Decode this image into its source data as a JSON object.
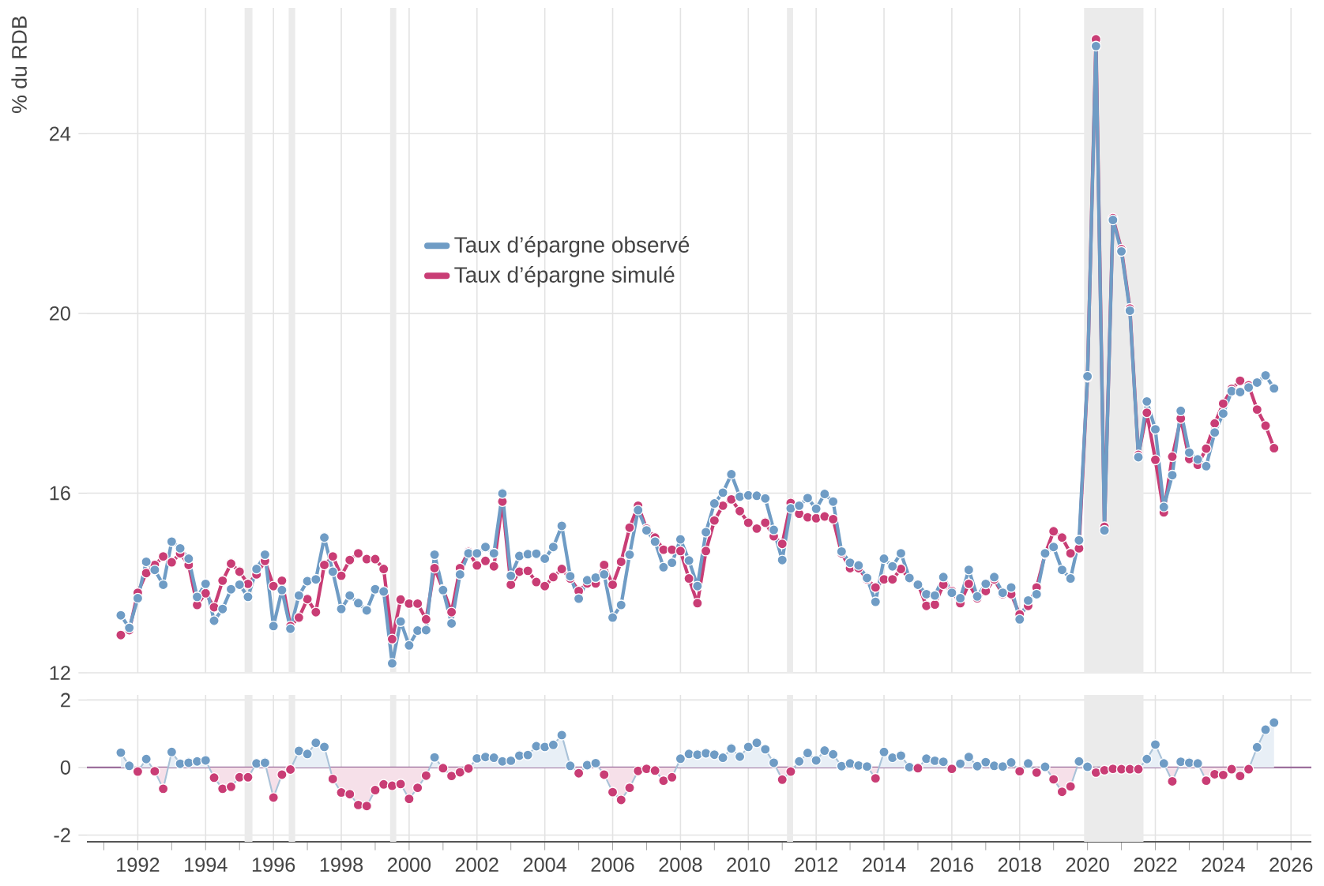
{
  "chart_data": [
    {
      "type": "line",
      "ylabel": "% du RDB",
      "x": [
        1991.5,
        1991.75,
        1992,
        1992.25,
        1992.5,
        1992.75,
        1993,
        1993.25,
        1993.5,
        1993.75,
        1994,
        1994.25,
        1994.5,
        1994.75,
        1995,
        1995.25,
        1995.5,
        1995.75,
        1996,
        1996.25,
        1996.5,
        1996.75,
        1997,
        1997.25,
        1997.5,
        1997.75,
        1998,
        1998.25,
        1998.5,
        1998.75,
        1999,
        1999.25,
        1999.5,
        1999.75,
        2000,
        2000.25,
        2000.5,
        2000.75,
        2001,
        2001.25,
        2001.5,
        2001.75,
        2002,
        2002.25,
        2002.5,
        2002.75,
        2003,
        2003.25,
        2003.5,
        2003.75,
        2004,
        2004.25,
        2004.5,
        2004.75,
        2005,
        2005.25,
        2005.5,
        2005.75,
        2006,
        2006.25,
        2006.5,
        2006.75,
        2007,
        2007.25,
        2007.5,
        2007.75,
        2008,
        2008.25,
        2008.5,
        2008.75,
        2009,
        2009.25,
        2009.5,
        2009.75,
        2010,
        2010.25,
        2010.5,
        2010.75,
        2011,
        2011.25,
        2011.5,
        2011.75,
        2012,
        2012.25,
        2012.5,
        2012.75,
        2013,
        2013.25,
        2013.5,
        2013.75,
        2014,
        2014.25,
        2014.5,
        2014.75,
        2015,
        2015.25,
        2015.5,
        2015.75,
        2016,
        2016.25,
        2016.5,
        2016.75,
        2017,
        2017.25,
        2017.5,
        2017.75,
        2018,
        2018.25,
        2018.5,
        2018.75,
        2019,
        2019.25,
        2019.5,
        2019.75,
        2020,
        2020.25,
        2020.5,
        2020.75,
        2021,
        2021.25,
        2021.5,
        2021.75,
        2022,
        2022.25,
        2022.5,
        2022.75,
        2023,
        2023.25,
        2023.5,
        2023.75,
        2024,
        2024.25,
        2024.5,
        2024.75,
        2025,
        2025.25,
        2025.5
      ],
      "xlim": [
        1990.5,
        2026.6
      ],
      "ylim": [
        12,
        26.8
      ],
      "xticks": [
        1992,
        1994,
        1996,
        1998,
        2000,
        2002,
        2004,
        2006,
        2008,
        2010,
        2012,
        2014,
        2016,
        2018,
        2020,
        2022,
        2024,
        2026
      ],
      "yticks": [
        12,
        16,
        20,
        24
      ],
      "tick_labels": "y",
      "grid": true,
      "legend": "top",
      "marker": "circle",
      "line_style": "solid",
      "bands": [
        {
          "axis": "x",
          "from": 1995.15,
          "to": 1995.38,
          "color": "#ebebeb"
        },
        {
          "axis": "x",
          "from": 1996.45,
          "to": 1996.64,
          "color": "#ebebeb"
        },
        {
          "axis": "x",
          "from": 1999.44,
          "to": 1999.62,
          "color": "#ebebeb"
        },
        {
          "axis": "x",
          "from": 2011.14,
          "to": 2011.32,
          "color": "#ebebeb"
        },
        {
          "axis": "x",
          "from": 2019.9,
          "to": 2021.65,
          "color": "#ebebeb"
        }
      ],
      "series": [
        {
          "name": "Taux d’épargne observé",
          "color": "#6f9cc5",
          "values": [
            13.28,
            13.0,
            13.66,
            14.47,
            14.29,
            13.96,
            14.92,
            14.77,
            14.54,
            13.69,
            13.98,
            13.16,
            13.42,
            13.86,
            13.96,
            13.69,
            14.31,
            14.63,
            13.04,
            13.84,
            12.98,
            13.72,
            14.04,
            14.08,
            15.01,
            14.25,
            13.42,
            13.72,
            13.55,
            13.39,
            13.86,
            13.81,
            12.21,
            13.14,
            12.61,
            12.94,
            12.95,
            14.63,
            13.84,
            13.1,
            14.19,
            14.66,
            14.66,
            14.8,
            14.66,
            15.99,
            14.16,
            14.6,
            14.64,
            14.65,
            14.54,
            14.8,
            15.27,
            14.15,
            13.65,
            14.06,
            14.12,
            14.19,
            13.23,
            13.51,
            14.63,
            15.62,
            15.17,
            14.92,
            14.35,
            14.45,
            14.97,
            14.5,
            13.93,
            15.13,
            15.77,
            16.01,
            16.42,
            15.92,
            15.95,
            15.94,
            15.88,
            15.18,
            14.51,
            15.66,
            15.72,
            15.89,
            15.65,
            15.98,
            15.81,
            14.7,
            14.45,
            14.39,
            14.11,
            13.58,
            14.54,
            14.37,
            14.66,
            14.11,
            13.96,
            13.75,
            13.72,
            14.13,
            13.78,
            13.66,
            14.29,
            13.7,
            13.98,
            14.13,
            13.78,
            13.9,
            13.19,
            13.61,
            13.75,
            14.66,
            14.8,
            14.29,
            14.1,
            14.95,
            18.6,
            25.95,
            15.17,
            22.08,
            21.38,
            20.06,
            16.8,
            18.04,
            17.42,
            15.69,
            16.4,
            17.83,
            16.9,
            16.75,
            16.6,
            17.35,
            17.77,
            18.27,
            18.25,
            18.35,
            18.46,
            18.62,
            18.33
          ]
        },
        {
          "name": "Taux d’épargne simulé",
          "color": "#c93d75",
          "values": [
            12.84,
            12.95,
            13.78,
            14.22,
            14.4,
            14.59,
            14.46,
            14.66,
            14.4,
            13.51,
            13.77,
            13.46,
            14.05,
            14.43,
            14.25,
            13.98,
            14.19,
            14.49,
            13.93,
            14.05,
            13.04,
            13.23,
            13.64,
            13.35,
            14.4,
            14.59,
            14.16,
            14.51,
            14.66,
            14.53,
            14.53,
            14.31,
            12.75,
            13.63,
            13.54,
            13.54,
            13.19,
            14.33,
            13.86,
            13.35,
            14.33,
            14.69,
            14.39,
            14.49,
            14.37,
            15.81,
            13.96,
            14.25,
            14.27,
            14.02,
            13.93,
            14.13,
            14.31,
            14.1,
            13.82,
            13.99,
            13.99,
            14.4,
            13.96,
            14.47,
            15.23,
            15.72,
            15.21,
            15.01,
            14.74,
            14.74,
            14.71,
            14.1,
            13.55,
            14.71,
            15.39,
            15.72,
            15.86,
            15.6,
            15.34,
            15.21,
            15.34,
            15.04,
            14.87,
            15.78,
            15.54,
            15.46,
            15.44,
            15.48,
            15.42,
            14.66,
            14.33,
            14.33,
            14.08,
            13.9,
            14.08,
            14.08,
            14.31,
            14.1,
            13.98,
            13.49,
            13.52,
            13.96,
            13.82,
            13.55,
            13.98,
            13.66,
            13.82,
            14.08,
            13.75,
            13.75,
            13.3,
            13.49,
            13.9,
            14.64,
            15.15,
            15.01,
            14.66,
            14.77,
            18.58,
            26.1,
            15.25,
            22.12,
            21.43,
            20.11,
            16.85,
            17.79,
            16.74,
            15.57,
            16.81,
            17.66,
            16.76,
            16.63,
            16.99,
            17.55,
            17.99,
            18.32,
            18.5,
            18.4,
            17.86,
            17.5,
            17.0
          ]
        }
      ]
    },
    {
      "type": "area",
      "x": [
        1991.5,
        1991.75,
        1992,
        1992.25,
        1992.5,
        1992.75,
        1993,
        1993.25,
        1993.5,
        1993.75,
        1994,
        1994.25,
        1994.5,
        1994.75,
        1995,
        1995.25,
        1995.5,
        1995.75,
        1996,
        1996.25,
        1996.5,
        1996.75,
        1997,
        1997.25,
        1997.5,
        1997.75,
        1998,
        1998.25,
        1998.5,
        1998.75,
        1999,
        1999.25,
        1999.5,
        1999.75,
        2000,
        2000.25,
        2000.5,
        2000.75,
        2001,
        2001.25,
        2001.5,
        2001.75,
        2002,
        2002.25,
        2002.5,
        2002.75,
        2003,
        2003.25,
        2003.5,
        2003.75,
        2004,
        2004.25,
        2004.5,
        2004.75,
        2005,
        2005.25,
        2005.5,
        2005.75,
        2006,
        2006.25,
        2006.5,
        2006.75,
        2007,
        2007.25,
        2007.5,
        2007.75,
        2008,
        2008.25,
        2008.5,
        2008.75,
        2009,
        2009.25,
        2009.5,
        2009.75,
        2010,
        2010.25,
        2010.5,
        2010.75,
        2011,
        2011.25,
        2011.5,
        2011.75,
        2012,
        2012.25,
        2012.5,
        2012.75,
        2013,
        2013.25,
        2013.5,
        2013.75,
        2014,
        2014.25,
        2014.5,
        2014.75,
        2015,
        2015.25,
        2015.5,
        2015.75,
        2016,
        2016.25,
        2016.5,
        2016.75,
        2017,
        2017.25,
        2017.5,
        2017.75,
        2018,
        2018.25,
        2018.5,
        2018.75,
        2019,
        2019.25,
        2019.5,
        2019.75,
        2020,
        2020.25,
        2020.5,
        2020.75,
        2021,
        2021.25,
        2021.5,
        2021.75,
        2022,
        2022.25,
        2022.5,
        2022.75,
        2023,
        2023.25,
        2023.5,
        2023.75,
        2024,
        2024.25,
        2024.5,
        2024.75,
        2025,
        2025.25,
        2025.5
      ],
      "xlim": [
        1990.5,
        2026.6
      ],
      "ylim": [
        -2.2,
        2.15
      ],
      "xticks": [
        {
          "value": 1991,
          "label": null
        },
        1992,
        {
          "value": 1993,
          "label": null
        },
        1994,
        {
          "value": 1995,
          "label": null
        },
        1996,
        {
          "value": 1997,
          "label": null
        },
        1998,
        {
          "value": 1999,
          "label": null
        },
        2000,
        {
          "value": 2001,
          "label": null
        },
        2002,
        {
          "value": 2003,
          "label": null
        },
        2004,
        {
          "value": 2005,
          "label": null
        },
        2006,
        {
          "value": 2007,
          "label": null
        },
        2008,
        {
          "value": 2009,
          "label": null
        },
        2010,
        {
          "value": 2011,
          "label": null
        },
        2012,
        {
          "value": 2013,
          "label": null
        },
        2014,
        {
          "value": 2015,
          "label": null
        },
        2016,
        {
          "value": 2017,
          "label": null
        },
        2018,
        {
          "value": 2019,
          "label": null
        },
        2020,
        {
          "value": 2021,
          "label": null
        },
        2022,
        {
          "value": 2023,
          "label": null
        },
        2024,
        {
          "value": 2025,
          "label": null
        },
        2026
      ],
      "yticks": [
        -2,
        0,
        2
      ],
      "grid": true,
      "marker": "circle",
      "bands": [
        {
          "axis": "x",
          "from": 1995.15,
          "to": 1995.38,
          "color": "#ebebeb"
        },
        {
          "axis": "x",
          "from": 1996.45,
          "to": 1996.64,
          "color": "#ebebeb"
        },
        {
          "axis": "x",
          "from": 1999.44,
          "to": 1999.62,
          "color": "#ebebeb"
        },
        {
          "axis": "x",
          "from": 2011.14,
          "to": 2011.32,
          "color": "#ebebeb"
        },
        {
          "axis": "x",
          "from": 2019.9,
          "to": 2021.65,
          "color": "#ebebeb"
        }
      ],
      "ref_lines": [
        {
          "axis": "y",
          "value": 0,
          "color": "#9c6f9c"
        }
      ],
      "series": [
        {
          "color": "#a9c2d8",
          "values": [
            0.44,
            0.05,
            -0.12,
            0.25,
            -0.11,
            -0.63,
            0.46,
            0.11,
            0.14,
            0.18,
            0.21,
            -0.3,
            -0.63,
            -0.57,
            -0.29,
            -0.29,
            0.12,
            0.14,
            -0.89,
            -0.21,
            -0.06,
            0.49,
            0.4,
            0.73,
            0.61,
            -0.34,
            -0.74,
            -0.79,
            -1.11,
            -1.14,
            -0.67,
            -0.5,
            -0.54,
            -0.49,
            -0.93,
            -0.6,
            -0.24,
            0.3,
            -0.02,
            -0.25,
            -0.14,
            -0.03,
            0.27,
            0.31,
            0.29,
            0.18,
            0.2,
            0.35,
            0.37,
            0.63,
            0.61,
            0.67,
            0.96,
            0.05,
            -0.17,
            0.07,
            0.13,
            -0.21,
            -0.73,
            -0.96,
            -0.6,
            -0.1,
            -0.04,
            -0.09,
            -0.39,
            -0.29,
            0.26,
            0.4,
            0.38,
            0.42,
            0.38,
            0.29,
            0.56,
            0.32,
            0.61,
            0.73,
            0.54,
            0.14,
            -0.36,
            -0.12,
            0.18,
            0.43,
            0.21,
            0.5,
            0.39,
            0.04,
            0.12,
            0.06,
            0.03,
            -0.32,
            0.46,
            0.29,
            0.35,
            0.01,
            -0.02,
            0.26,
            0.2,
            0.17,
            -0.04,
            0.11,
            0.31,
            0.04,
            0.16,
            0.05,
            0.03,
            0.15,
            -0.11,
            0.12,
            -0.15,
            0.02,
            -0.35,
            -0.72,
            -0.56,
            0.18,
            0.02,
            -0.15,
            -0.08,
            -0.04,
            -0.05,
            -0.05,
            -0.05,
            0.25,
            0.68,
            0.12,
            -0.41,
            0.17,
            0.14,
            0.12,
            -0.39,
            -0.2,
            -0.22,
            -0.05,
            -0.25,
            -0.05,
            0.6,
            1.12,
            1.33
          ],
          "colors": [
            "#6f9cc5",
            "#6f9cc5",
            "#c93d75",
            "#6f9cc5",
            "#c93d75",
            "#c93d75",
            "#6f9cc5",
            "#6f9cc5",
            "#6f9cc5",
            "#6f9cc5",
            "#6f9cc5",
            "#c93d75",
            "#c93d75",
            "#c93d75",
            "#c93d75",
            "#c93d75",
            "#6f9cc5",
            "#6f9cc5",
            "#c93d75",
            "#c93d75",
            "#c93d75",
            "#6f9cc5",
            "#6f9cc5",
            "#6f9cc5",
            "#6f9cc5",
            "#c93d75",
            "#c93d75",
            "#c93d75",
            "#c93d75",
            "#c93d75",
            "#c93d75",
            "#c93d75",
            "#c93d75",
            "#c93d75",
            "#c93d75",
            "#c93d75",
            "#c93d75",
            "#6f9cc5",
            "#c93d75",
            "#c93d75",
            "#c93d75",
            "#c93d75",
            "#6f9cc5",
            "#6f9cc5",
            "#6f9cc5",
            "#6f9cc5",
            "#6f9cc5",
            "#6f9cc5",
            "#6f9cc5",
            "#6f9cc5",
            "#6f9cc5",
            "#6f9cc5",
            "#6f9cc5",
            "#6f9cc5",
            "#c93d75",
            "#6f9cc5",
            "#6f9cc5",
            "#c93d75",
            "#c93d75",
            "#c93d75",
            "#c93d75",
            "#c93d75",
            "#c93d75",
            "#c93d75",
            "#c93d75",
            "#c93d75",
            "#6f9cc5",
            "#6f9cc5",
            "#6f9cc5",
            "#6f9cc5",
            "#6f9cc5",
            "#6f9cc5",
            "#6f9cc5",
            "#6f9cc5",
            "#6f9cc5",
            "#6f9cc5",
            "#6f9cc5",
            "#6f9cc5",
            "#c93d75",
            "#c93d75",
            "#6f9cc5",
            "#6f9cc5",
            "#6f9cc5",
            "#6f9cc5",
            "#6f9cc5",
            "#6f9cc5",
            "#6f9cc5",
            "#6f9cc5",
            "#6f9cc5",
            "#c93d75",
            "#6f9cc5",
            "#6f9cc5",
            "#6f9cc5",
            "#6f9cc5",
            "#c93d75",
            "#6f9cc5",
            "#6f9cc5",
            "#6f9cc5",
            "#c93d75",
            "#6f9cc5",
            "#6f9cc5",
            "#6f9cc5",
            "#6f9cc5",
            "#6f9cc5",
            "#6f9cc5",
            "#6f9cc5",
            "#c93d75",
            "#6f9cc5",
            "#c93d75",
            "#6f9cc5",
            "#c93d75",
            "#c93d75",
            "#c93d75",
            "#6f9cc5",
            "#6f9cc5",
            "#c93d75",
            "#c93d75",
            "#c93d75",
            "#c93d75",
            "#c93d75",
            "#c93d75",
            "#6f9cc5",
            "#6f9cc5",
            "#6f9cc5",
            "#c93d75",
            "#6f9cc5",
            "#6f9cc5",
            "#6f9cc5",
            "#c93d75",
            "#c93d75",
            "#c93d75",
            "#c93d75",
            "#c93d75",
            "#c93d75",
            "#6f9cc5",
            "#6f9cc5",
            "#6f9cc5"
          ]
        }
      ]
    }
  ]
}
